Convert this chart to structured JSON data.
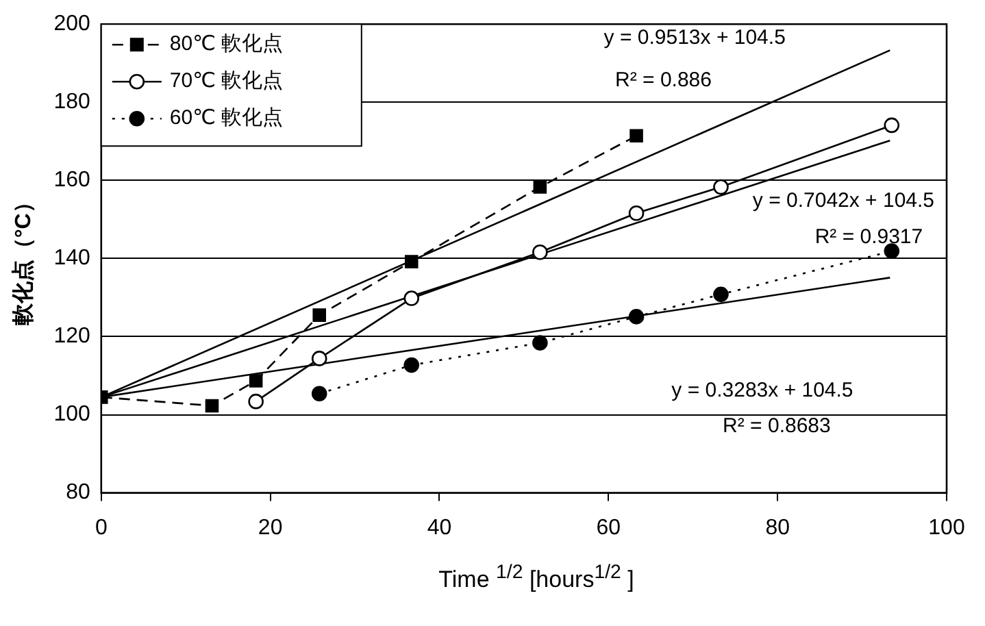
{
  "chart_data": {
    "type": "line",
    "xlabel": "Time $^{1/2}$ [hours$^{1/2}$ ]",
    "ylabel": "軟化点（°C）",
    "xlim": [
      0,
      100
    ],
    "xticks": [
      0,
      20,
      40,
      60,
      80,
      100
    ],
    "ylim": [
      80,
      200
    ],
    "yticks": [
      80,
      100,
      120,
      140,
      160,
      180,
      200
    ],
    "grid": "y",
    "legend": "top left",
    "series": [
      {
        "name": "80℃ 軟化点",
        "color": "#000000",
        "marker": "square",
        "line_style": "dashed",
        "x": [
          0,
          13.1,
          18.3,
          25.8,
          36.7,
          51.9,
          63.3
        ],
        "values": [
          104.5,
          102.3,
          108.7,
          125.5,
          139.2,
          158.3,
          171.4
        ]
      },
      {
        "name": "70℃ 軟化点",
        "color": "#000000",
        "marker": "circle",
        "line_style": "solid",
        "x": [
          18.3,
          25.8,
          36.7,
          51.9,
          63.3,
          73.3,
          93.5
        ],
        "values": [
          103.4,
          114.4,
          129.8,
          141.6,
          151.6,
          158.3,
          174.1
        ]
      },
      {
        "name": "60℃ 軟化点",
        "color": "#000000",
        "marker": "circle",
        "line_style": "dotted",
        "x": [
          25.8,
          36.7,
          51.9,
          63.3,
          73.3,
          93.5
        ],
        "values": [
          105.4,
          112.7,
          118.4,
          125.1,
          130.8,
          141.9
        ]
      },
      {
        "type": "line",
        "color": "#000000",
        "marker": "none",
        "line_style": "solid",
        "x": [
          0,
          93.3
        ],
        "values": [
          104.5,
          193.3
        ]
      },
      {
        "type": "line",
        "color": "#000000",
        "marker": "none",
        "line_style": "solid",
        "x": [
          0,
          93.3
        ],
        "values": [
          104.5,
          170.2
        ]
      },
      {
        "type": "line",
        "color": "#000000",
        "marker": "none",
        "line_style": "solid",
        "x": [
          0,
          93.3
        ],
        "values": [
          104.5,
          135.1
        ]
      }
    ],
    "annotations": [
      "y = 0.9513x + 104.5",
      "R² = 0.886",
      "y = 0.7042x + 104.5",
      "R² = 0.9317",
      "y = 0.3283x + 104.5",
      "R² = 0.8683"
    ]
  }
}
